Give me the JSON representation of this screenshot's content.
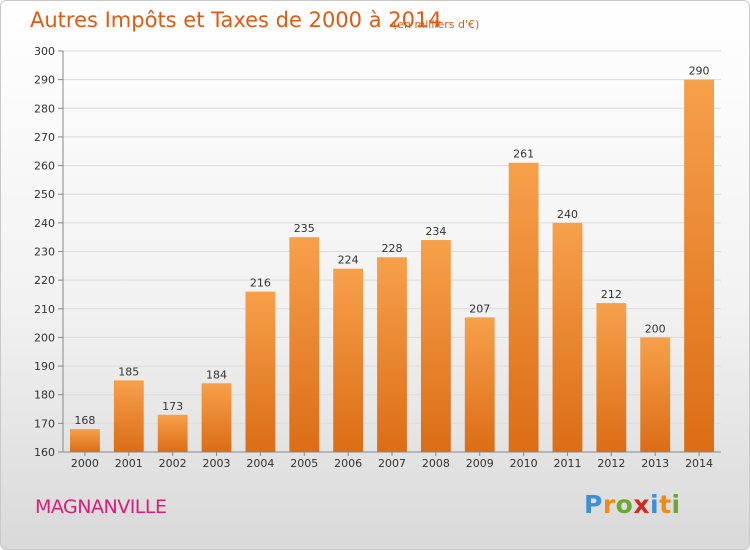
{
  "chart_data": {
    "type": "bar",
    "title": "Autres Impôts et Taxes de 2000 à 2014",
    "subtitle": "(en milliers d'€)",
    "categories": [
      "2000",
      "2001",
      "2002",
      "2003",
      "2004",
      "2005",
      "2006",
      "2007",
      "2008",
      "2009",
      "2010",
      "2011",
      "2012",
      "2013",
      "2014"
    ],
    "values": [
      168,
      185,
      173,
      184,
      216,
      235,
      224,
      228,
      234,
      207,
      261,
      240,
      212,
      200,
      290
    ],
    "ylim": [
      160,
      300
    ],
    "yticks": [
      160,
      170,
      180,
      190,
      200,
      210,
      220,
      230,
      240,
      250,
      260,
      270,
      280,
      290,
      300
    ],
    "grid": true,
    "bar_color_top": "#f7a04a",
    "bar_color_bottom": "#db6d16"
  },
  "footer": {
    "commune": "MAGNANVILLE",
    "logo_letters": [
      "P",
      "r",
      "o",
      "x",
      "i",
      "t",
      "i"
    ],
    "logo_colors": [
      "#3d8fd6",
      "#f08a14",
      "#6aa832",
      "#d12a22",
      "#3d8fd6",
      "#f08a14",
      "#6aa832"
    ]
  },
  "colors": {
    "title": "#e05a14",
    "commune": "#d61f7a"
  }
}
